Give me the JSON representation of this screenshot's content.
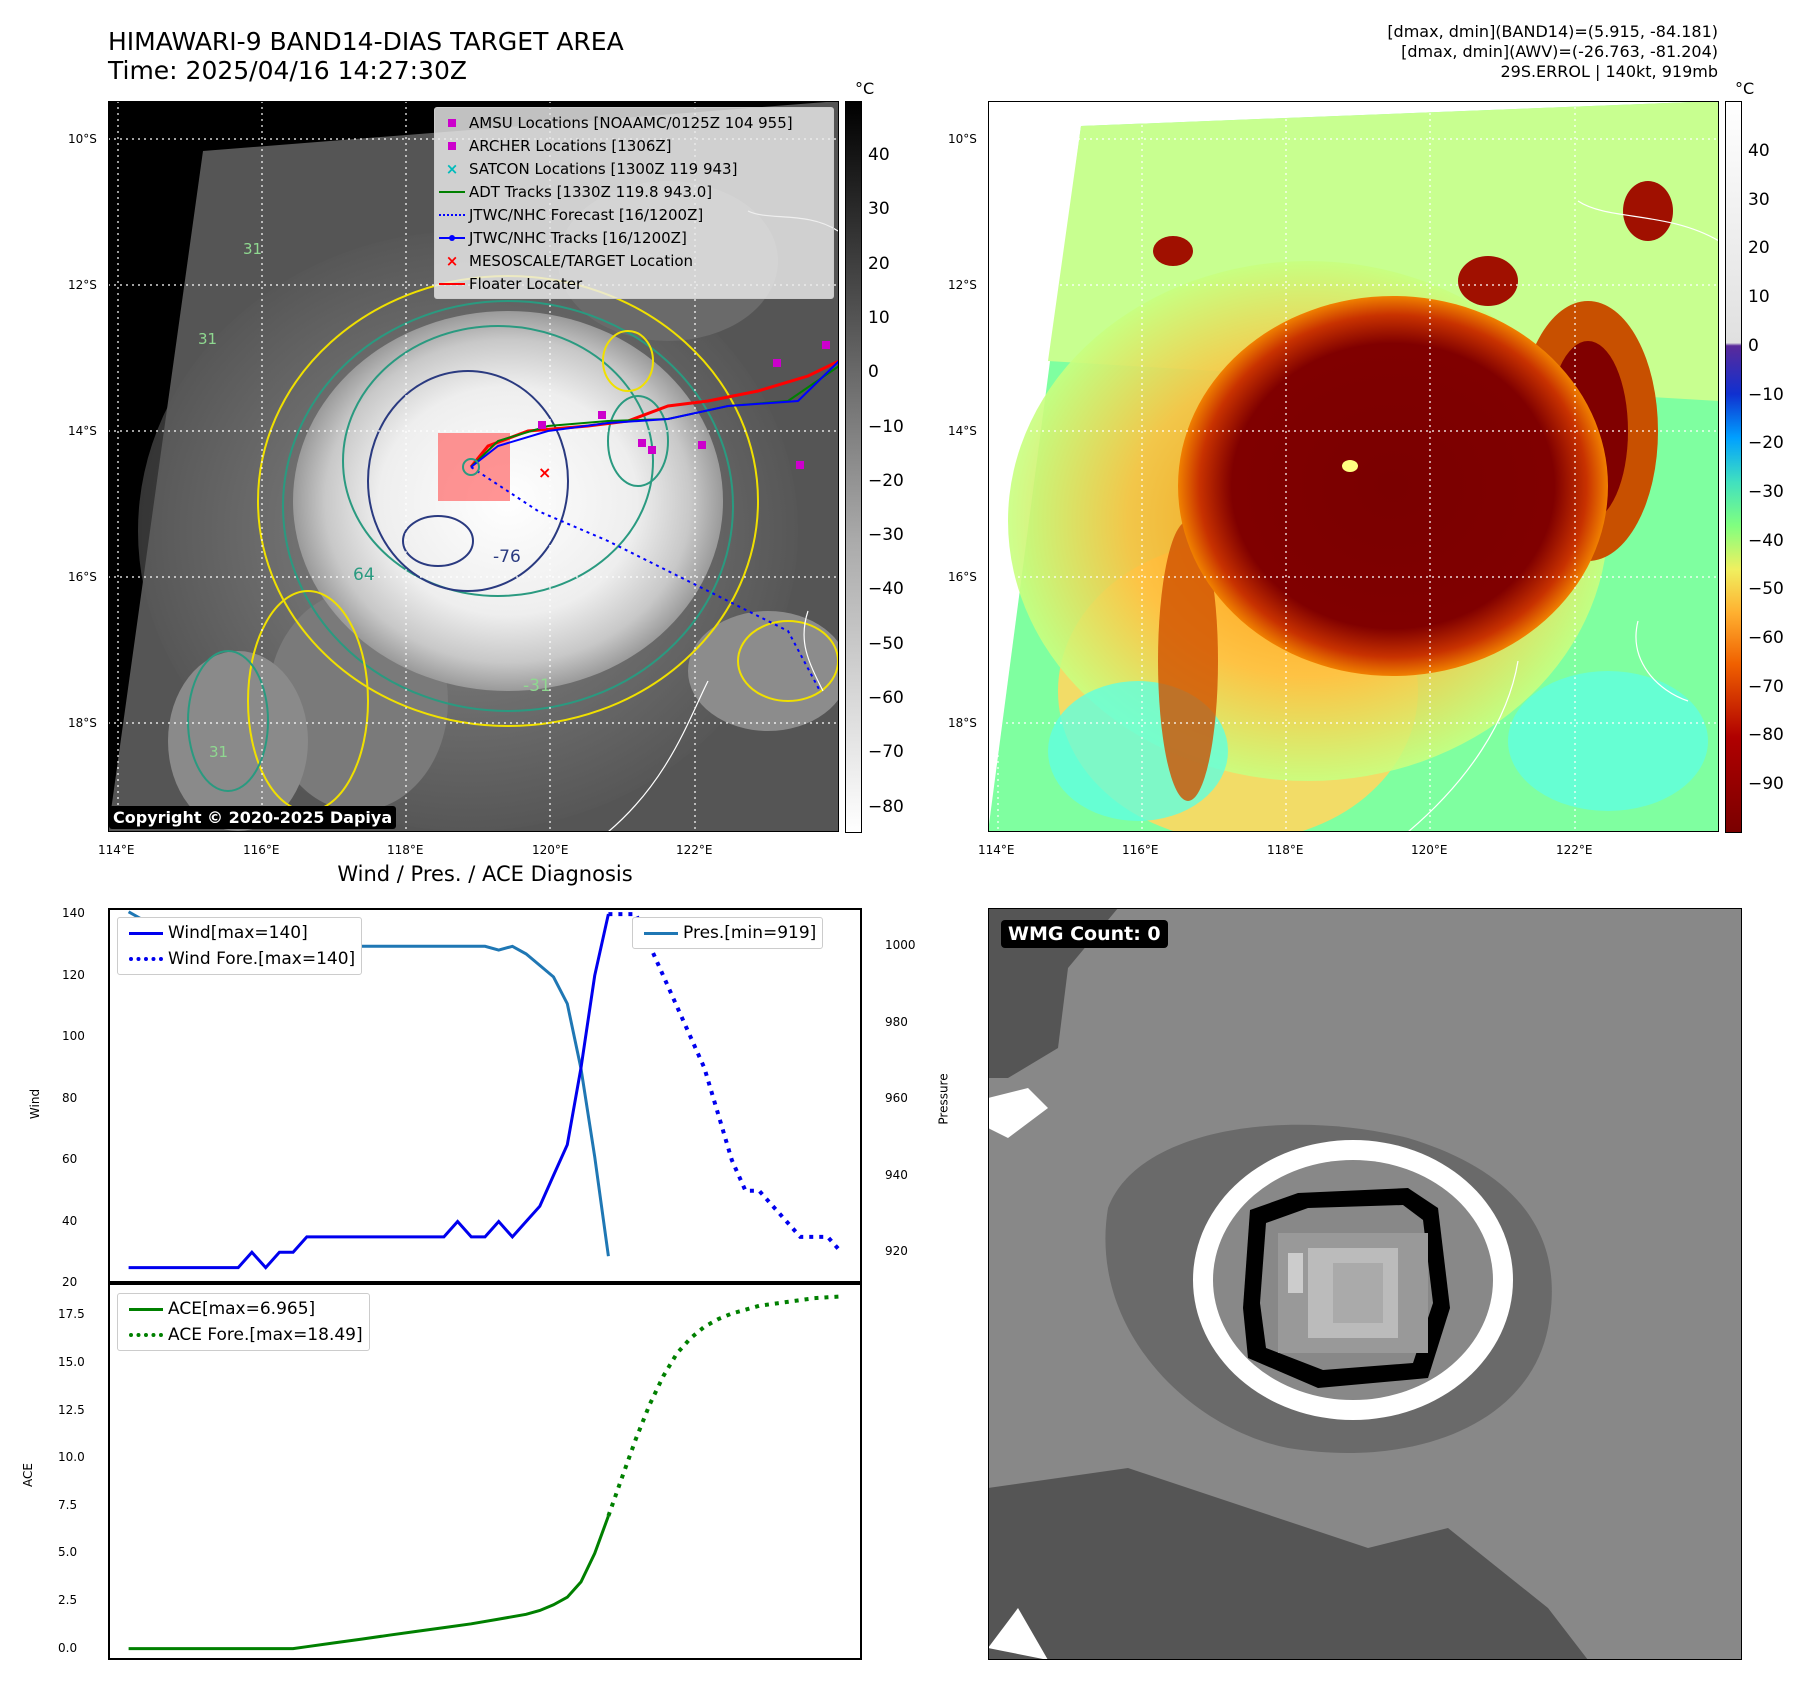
{
  "header": {
    "title_line1": "HIMAWARI-9 BAND14-DIAS TARGET AREA",
    "title_line2": "Time: 2025/04/16 14:27:30Z",
    "info_line1": "[dmax, dmin](BAND14)=(5.915, -84.181)",
    "info_line2": "[dmax, dmin](AWV)=(-26.763, -81.204)",
    "info_line3": "29S.ERROL | 140kt, 919mb"
  },
  "map_axes": {
    "lat_labels": [
      "10°S",
      "12°S",
      "14°S",
      "16°S",
      "18°S"
    ],
    "lon_labels": [
      "114°E",
      "116°E",
      "118°E",
      "120°E",
      "122°E"
    ]
  },
  "ir_panel": {
    "colorbar_unit": "°C",
    "colorbar_ticks": [
      "40",
      "30",
      "20",
      "10",
      "0",
      "−10",
      "−20",
      "−30",
      "−40",
      "−50",
      "−60",
      "−70",
      "−80"
    ],
    "copyright": "Copyright © 2020-2025 Dapiya",
    "contour_labels": [
      "-76",
      "64",
      "-31",
      "31",
      "31",
      "31"
    ],
    "legend": [
      {
        "label": "AMSU Locations [NOAAMC/0125Z 104 955]",
        "symbol": "square",
        "color": "#cc00cc"
      },
      {
        "label": "ARCHER Locations [1306Z]",
        "symbol": "square",
        "color": "#cc00cc"
      },
      {
        "label": "SATCON Locations [1300Z 119 943]",
        "symbol": "x",
        "color": "#00bbbb"
      },
      {
        "label": "ADT Tracks [1330Z 119.8 943.0]",
        "symbol": "line",
        "color": "#008000"
      },
      {
        "label": "JTWC/NHC Forecast [16/1200Z]",
        "symbol": "dotted",
        "color": "#0000ff"
      },
      {
        "label": "JTWC/NHC Tracks [16/1200Z]",
        "symbol": "line-dot",
        "color": "#0000ff"
      },
      {
        "label": "MESOSCALE/TARGET Location",
        "symbol": "x",
        "color": "#ff0000"
      },
      {
        "label": "Floater Locater",
        "symbol": "line",
        "color": "#ff0000"
      }
    ]
  },
  "awv_panel": {
    "colorbar_unit": "°C",
    "colorbar_ticks": [
      "40",
      "30",
      "20",
      "10",
      "0",
      "−10",
      "−20",
      "−30",
      "−40",
      "−50",
      "−60",
      "−70",
      "−80",
      "−90"
    ]
  },
  "wmg_panel": {
    "badge": "WMG Count: 0"
  },
  "chart_data": [
    {
      "type": "line",
      "title": "Wind / Pres. / ACE Diagnosis",
      "ylabel": "Wind",
      "ylabel_right": "Pressure",
      "ylim": [
        20,
        142
      ],
      "ylim_right": [
        912,
        1010
      ],
      "y_ticks": [
        "140",
        "120",
        "100",
        "80",
        "60",
        "40",
        "20"
      ],
      "y_ticks_right": [
        "1000",
        "980",
        "960",
        "940",
        "920"
      ],
      "series": [
        {
          "name": "Wind[max=140]",
          "style": "solid",
          "color": "#0000ee",
          "x": [
            0,
            1,
            2,
            3,
            4,
            5,
            6,
            7,
            8,
            9,
            10,
            11,
            12,
            13,
            14,
            15,
            16,
            17,
            18,
            19,
            20,
            21,
            22,
            23,
            24,
            25,
            26,
            27,
            28,
            29,
            30,
            31,
            32,
            33,
            34,
            35,
            36,
            37,
            38,
            39,
            40,
            41
          ],
          "values": [
            25,
            25,
            25,
            25,
            25,
            25,
            25,
            25,
            25,
            30,
            25,
            30,
            30,
            35,
            35,
            35,
            35,
            35,
            35,
            35,
            35,
            35,
            35,
            35,
            40,
            35,
            35,
            40,
            35,
            40,
            45,
            55,
            65,
            90,
            120,
            140,
            null,
            null,
            null,
            null,
            null,
            null
          ]
        },
        {
          "name": "Wind Fore.[max=140]",
          "style": "dotted",
          "color": "#0000ee",
          "x": [
            35,
            36,
            37,
            38,
            39,
            40,
            41,
            42,
            43,
            44,
            45,
            46,
            47,
            48,
            49,
            50,
            51,
            52
          ],
          "values": [
            140,
            140,
            140,
            130,
            120,
            110,
            100,
            90,
            75,
            60,
            50,
            50,
            45,
            40,
            35,
            35,
            35,
            30
          ]
        },
        {
          "name": "Pres.[min=919]",
          "style": "solid",
          "color": "#1f77b4",
          "axis": "right",
          "x": [
            0,
            1,
            2,
            3,
            4,
            5,
            6,
            7,
            8,
            9,
            10,
            11,
            12,
            13,
            14,
            15,
            16,
            17,
            18,
            19,
            20,
            21,
            22,
            23,
            24,
            25,
            26,
            27,
            28,
            29,
            30,
            31,
            32,
            33,
            34,
            35
          ],
          "values": [
            1009,
            1007,
            1007,
            1006,
            1006,
            1003,
            1002,
            1001,
            1001,
            1000,
            1001,
            1000,
            1000,
            1000,
            1000,
            1000,
            1000,
            1000,
            1000,
            1000,
            1000,
            1000,
            1000,
            1000,
            1000,
            1000,
            1000,
            999,
            1000,
            998,
            995,
            992,
            985,
            968,
            945,
            919
          ]
        }
      ]
    },
    {
      "type": "line",
      "ylabel": "ACE",
      "ylim": [
        -0.6,
        19.2
      ],
      "y_ticks": [
        "17.5",
        "15.0",
        "12.5",
        "10.0",
        "7.5",
        "5.0",
        "2.5",
        "0.0"
      ],
      "series": [
        {
          "name": "ACE[max=6.965]",
          "style": "solid",
          "color": "#008000",
          "x": [
            0,
            4,
            8,
            12,
            13,
            15,
            17,
            19,
            21,
            23,
            25,
            27,
            29,
            30,
            31,
            32,
            33,
            34,
            35
          ],
          "values": [
            0,
            0,
            0,
            0,
            0.1,
            0.3,
            0.5,
            0.7,
            0.9,
            1.1,
            1.3,
            1.55,
            1.8,
            2.0,
            2.3,
            2.7,
            3.5,
            5.0,
            6.965
          ]
        },
        {
          "name": "ACE Fore.[max=18.49]",
          "style": "dotted",
          "color": "#008000",
          "x": [
            35,
            36,
            37,
            38,
            39,
            40,
            41,
            42,
            43,
            44,
            45,
            46,
            47,
            48,
            49,
            50,
            51,
            52
          ],
          "values": [
            6.965,
            9.0,
            11.0,
            12.8,
            14.3,
            15.5,
            16.3,
            16.9,
            17.3,
            17.6,
            17.8,
            18.0,
            18.1,
            18.2,
            18.3,
            18.4,
            18.45,
            18.49
          ]
        }
      ]
    }
  ]
}
